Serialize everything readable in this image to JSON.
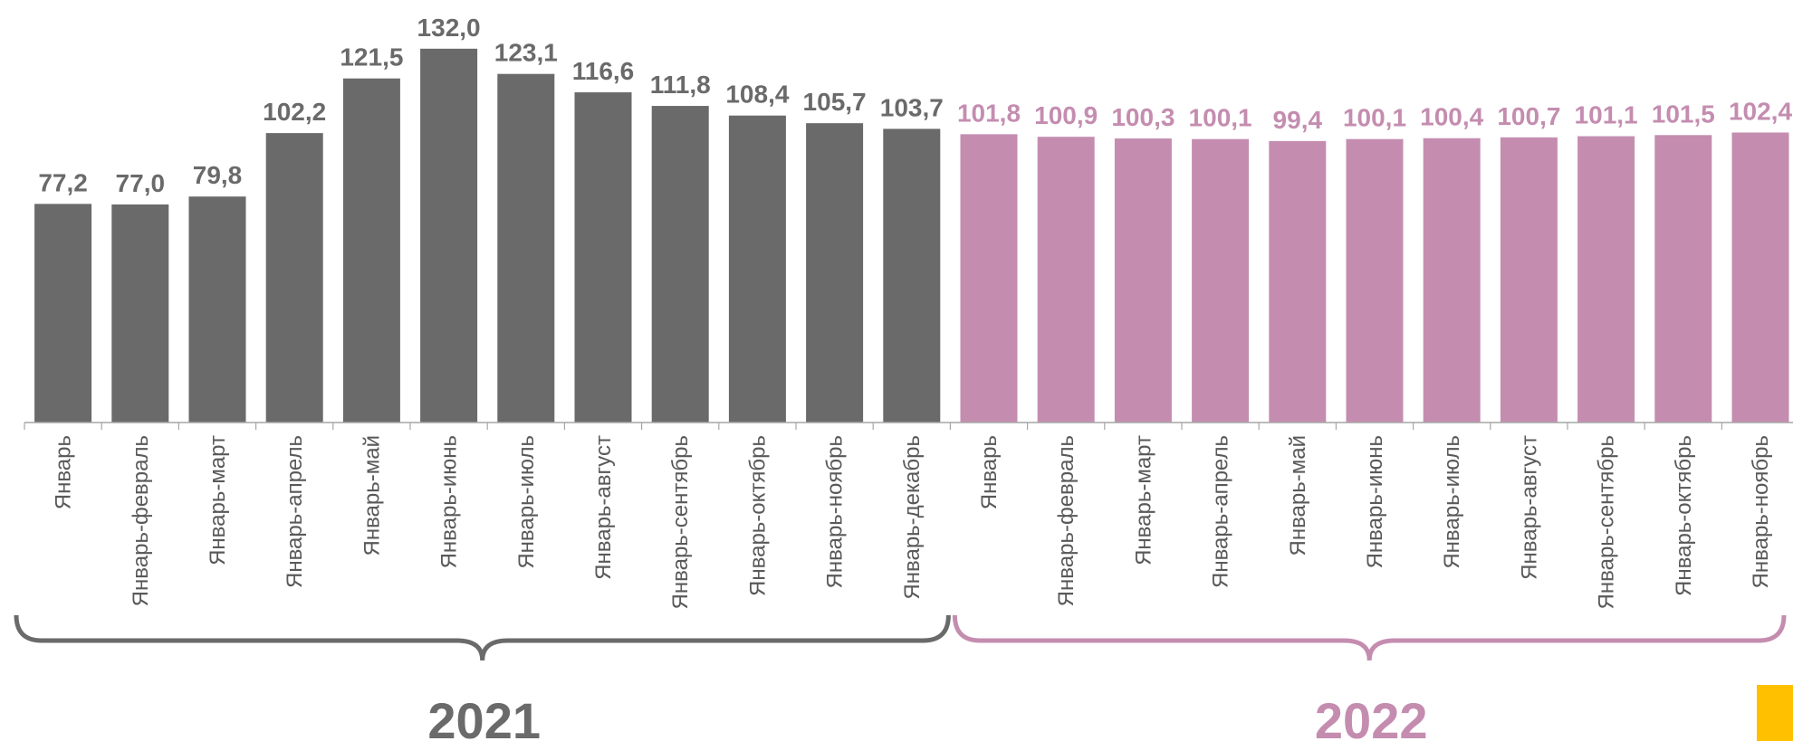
{
  "chart_data": {
    "type": "bar",
    "title": "",
    "xlabel": "",
    "ylabel": "",
    "ylim": [
      0,
      140
    ],
    "grid": false,
    "legend": "none",
    "series": [
      {
        "name": "",
        "color": "#6a6a6a",
        "group_label": "2021",
        "categories": [
          "Январь",
          "Январь-февраль",
          "Январь-март",
          "Январь-апрель",
          "Январь-май",
          "Январь-июнь",
          "Январь-июль",
          "Январь-август",
          "Январь-сентябрь",
          "Январь-октябрь",
          "Январь-ноябрь",
          "Январь-декабрь"
        ],
        "values": [
          77.2,
          77.0,
          79.8,
          102.2,
          121.5,
          132.0,
          123.1,
          116.6,
          111.8,
          108.4,
          105.7,
          103.7
        ],
        "value_labels": [
          "77,2",
          "77,0",
          "79,8",
          "102,2",
          "121,5",
          "132,0",
          "123,1",
          "116,6",
          "111,8",
          "108,4",
          "105,7",
          "103,7"
        ]
      },
      {
        "name": "",
        "color": "#c48db0",
        "group_label": "2022",
        "categories": [
          "Январь",
          "Январь-февраль",
          "Январь-март",
          "Январь-апрель",
          "Январь-май",
          "Январь-июнь",
          "Январь-июль",
          "Январь-август",
          "Январь-сентябрь",
          "Январь-октябрь",
          "Январь-ноябрь"
        ],
        "values": [
          101.8,
          100.9,
          100.3,
          100.1,
          99.4,
          100.1,
          100.4,
          100.7,
          101.1,
          101.5,
          102.4
        ],
        "value_labels": [
          "101,8",
          "100,9",
          "100,3",
          "100,1",
          "99,4",
          "100,1",
          "100,4",
          "100,7",
          "101,1",
          "101,5",
          "102,4"
        ]
      }
    ]
  },
  "colors": {
    "axis": "#a6a6a6",
    "label": "#595959",
    "badge": "#ffc000"
  }
}
